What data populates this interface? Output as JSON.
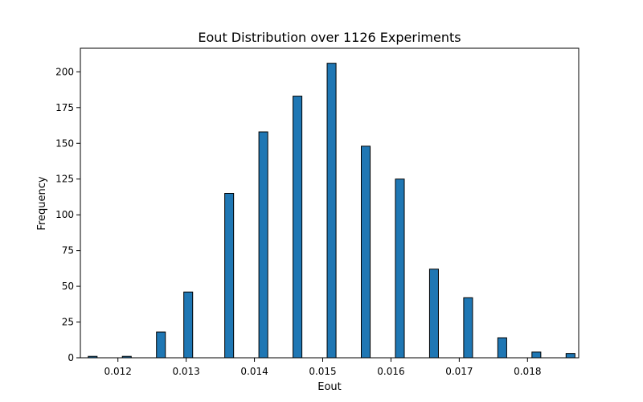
{
  "chart_data": {
    "type": "bar",
    "title": "Eout Distribution over 1126 Experiments",
    "xlabel": "Eout",
    "ylabel": "Frequency",
    "xlim": [
      0.01145,
      0.01875
    ],
    "ylim": [
      0,
      216.5
    ],
    "bin_width": 0.00013,
    "x_ticks": [
      0.012,
      0.013,
      0.014,
      0.015,
      0.016,
      0.017,
      0.018
    ],
    "x_tick_labels": [
      "0.012",
      "0.013",
      "0.014",
      "0.015",
      "0.016",
      "0.017",
      "0.018"
    ],
    "y_ticks": [
      0,
      25,
      50,
      75,
      100,
      125,
      150,
      175,
      200
    ],
    "y_tick_labels": [
      "0",
      "25",
      "50",
      "75",
      "100",
      "125",
      "150",
      "175",
      "200"
    ],
    "bins": [
      {
        "x": 0.01163,
        "value": 1
      },
      {
        "x": 0.01213,
        "value": 1
      },
      {
        "x": 0.01263,
        "value": 18
      },
      {
        "x": 0.01303,
        "value": 46
      },
      {
        "x": 0.01363,
        "value": 115
      },
      {
        "x": 0.01413,
        "value": 158
      },
      {
        "x": 0.01463,
        "value": 183
      },
      {
        "x": 0.01513,
        "value": 206
      },
      {
        "x": 0.01563,
        "value": 148
      },
      {
        "x": 0.01613,
        "value": 125
      },
      {
        "x": 0.01663,
        "value": 62
      },
      {
        "x": 0.01713,
        "value": 42
      },
      {
        "x": 0.01763,
        "value": 14
      },
      {
        "x": 0.01813,
        "value": 4
      },
      {
        "x": 0.01863,
        "value": 3
      }
    ],
    "bar_color": "#1f77b4",
    "edge_color": "#000000",
    "grid": false,
    "legend": "none"
  }
}
